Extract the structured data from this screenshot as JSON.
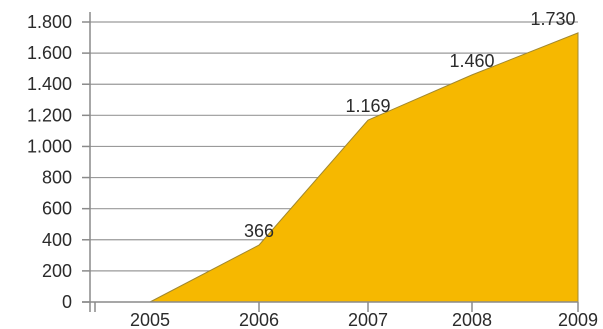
{
  "chart_data": {
    "type": "area",
    "title": "",
    "xlabel": "",
    "ylabel": "",
    "x": [
      "2005",
      "2006",
      "2007",
      "2008",
      "2009"
    ],
    "series": [
      {
        "values": [
          0,
          366,
          1169,
          1460,
          1730
        ],
        "labels": [
          "",
          "366",
          "1.169",
          "1.460",
          "1.730"
        ]
      }
    ],
    "ylim": [
      0,
      1800
    ],
    "yticks": [
      0,
      200,
      400,
      600,
      800,
      1000,
      1200,
      1400,
      1600,
      1800
    ],
    "ytick_labels": [
      "0",
      "200",
      "400",
      "600",
      "800",
      "1.000",
      "1.200",
      "1.400",
      "1.600",
      "1.800"
    ],
    "xtick_labels": [
      "2005",
      "2006",
      "2007",
      "2008",
      "2009"
    ],
    "grid": "horizontal",
    "colors": {
      "area_fill": "#F6B800",
      "area_edge": "#A08830",
      "grid": "#9A9A9A",
      "axis": "#8A8A8A",
      "text": "#2B2B2B"
    }
  }
}
